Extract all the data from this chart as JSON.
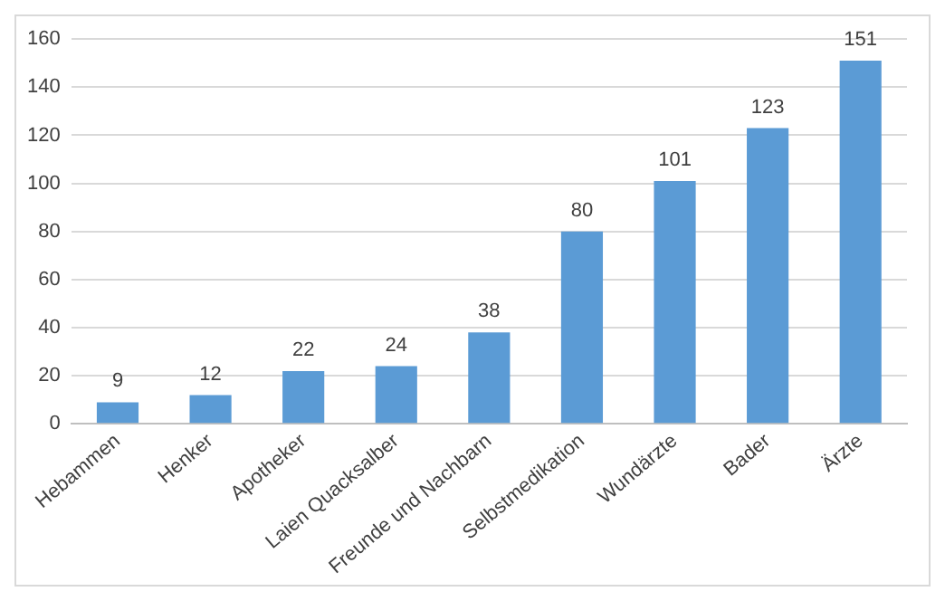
{
  "chart_data": {
    "type": "bar",
    "categories": [
      "Hebammen",
      "Henker",
      "Apotheker",
      "Laien Quacksalber",
      "Freunde und Nachbarn",
      "Selbstmedikation",
      "Wundärzte",
      "Bader",
      "Ärzte"
    ],
    "values": [
      9,
      12,
      22,
      24,
      38,
      80,
      101,
      123,
      151
    ],
    "color": "#5b9bd5",
    "ylim": [
      0,
      160
    ],
    "yticks": [
      0,
      20,
      40,
      60,
      80,
      100,
      120,
      140,
      160
    ],
    "grid": "y",
    "data_labels": true
  }
}
